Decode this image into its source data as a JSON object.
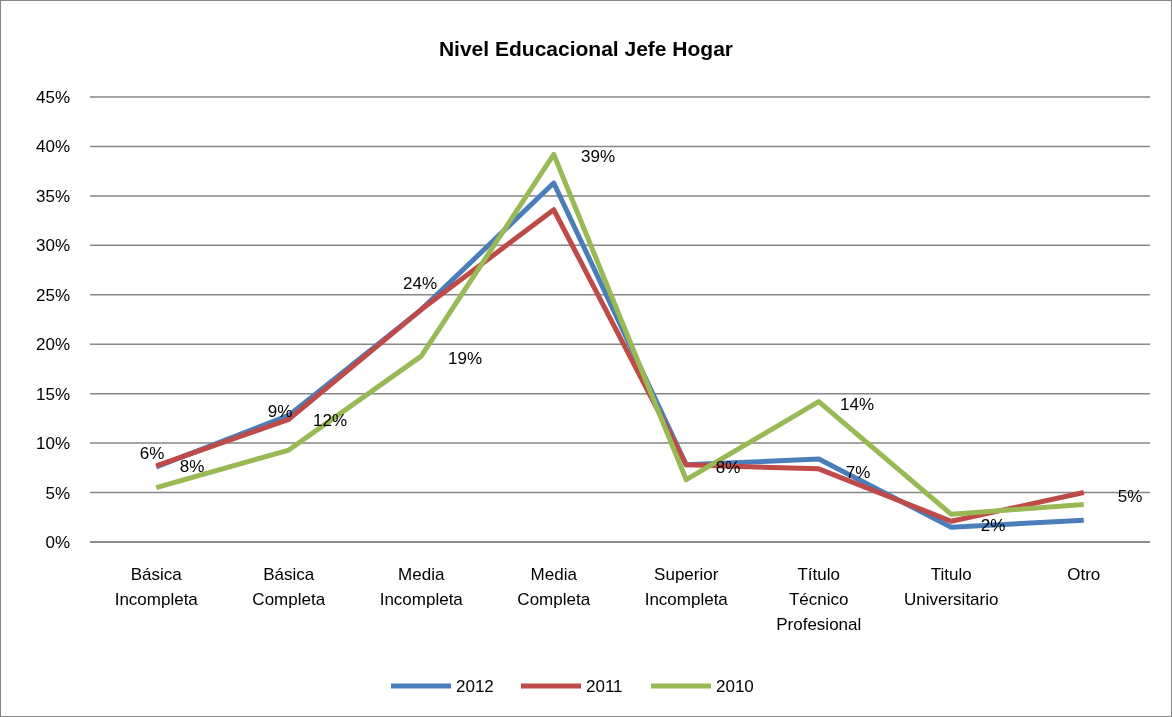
{
  "chart_data": {
    "type": "line",
    "title": "Nivel Educacional Jefe Hogar",
    "categories": [
      "Básica Incompleta",
      "Básica Completa",
      "Media Incompleta",
      "Media Completa",
      "Superior Incompleta",
      "Título Técnico Profesional",
      "Titulo Universitario",
      "Otro"
    ],
    "series": [
      {
        "name": "2012",
        "color": "#4a7ebb",
        "values": [
          7.6,
          12.8,
          23.5,
          36.3,
          7.8,
          8.4,
          1.5,
          2.2
        ]
      },
      {
        "name": "2011",
        "color": "#be4b48",
        "values": [
          7.7,
          12.4,
          23.5,
          33.6,
          7.8,
          7.4,
          2.1,
          5.0
        ]
      },
      {
        "name": "2010",
        "color": "#98b954",
        "values": [
          5.5,
          9.3,
          18.8,
          39.2,
          6.3,
          14.2,
          2.8,
          3.8
        ]
      }
    ],
    "ylim": [
      0,
      45
    ],
    "yticks": [
      {
        "value": 0,
        "label": "0%"
      },
      {
        "value": 5,
        "label": "5%"
      },
      {
        "value": 10,
        "label": "10%"
      },
      {
        "value": 15,
        "label": "15%"
      },
      {
        "value": 20,
        "label": "20%"
      },
      {
        "value": 25,
        "label": "25%"
      },
      {
        "value": 30,
        "label": "30%"
      },
      {
        "value": 35,
        "label": "35%"
      },
      {
        "value": 40,
        "label": "40%"
      },
      {
        "value": 45,
        "label": "45%"
      }
    ],
    "grid": "y",
    "legend": "bottom",
    "marker": "none",
    "line_style": "solid",
    "annotations": [
      "6%",
      "8%",
      "9%",
      "12%",
      "24%",
      "19%",
      "39%",
      "8%",
      "14%",
      "7%",
      "2%",
      "5%"
    ]
  }
}
